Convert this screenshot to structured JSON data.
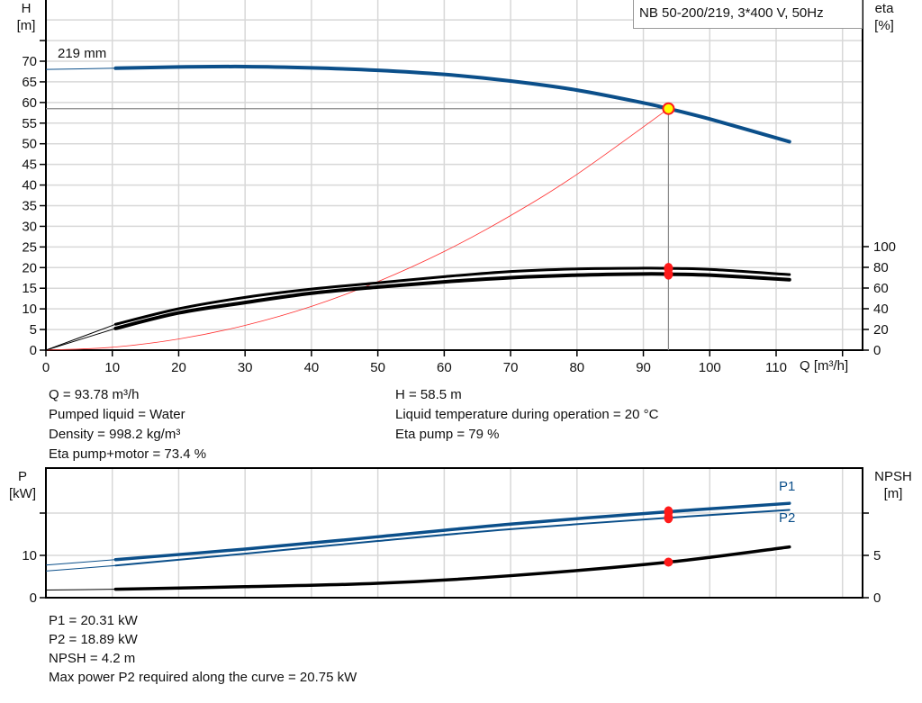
{
  "title": "NB 50-200/219, 3*400 V, 50Hz",
  "chart_data": [
    {
      "type": "line",
      "title": "NB 50-200/219, 3*400 V, 50Hz",
      "xlabel": "Q [m³/h]",
      "ylabel": "H\n[m]",
      "ylabel_unit": "[m]",
      "ylabel_name": "H",
      "y2label_name": "eta",
      "y2label_unit": "[%]",
      "xlim": [
        0,
        123
      ],
      "ylim": [
        0,
        85
      ],
      "y2lim": [
        0,
        100
      ],
      "xticks": [
        0,
        10,
        20,
        30,
        40,
        50,
        60,
        70,
        80,
        90,
        100,
        110
      ],
      "yticks": [
        0,
        5,
        10,
        15,
        20,
        25,
        30,
        35,
        40,
        45,
        50,
        55,
        60,
        65,
        70
      ],
      "y2ticks": [
        0,
        20,
        40,
        60,
        80,
        100
      ],
      "grid": true,
      "curve_label": "219 mm",
      "series": [
        {
          "id": "head",
          "axis": "left",
          "color": "#0b4f8a",
          "extrapolated_to": 10.5,
          "x": [
            0,
            10.5,
            20,
            30,
            40,
            50,
            60,
            70,
            80,
            90,
            93.78,
            100,
            112
          ],
          "y": [
            68.0,
            68.3,
            68.6,
            68.7,
            68.4,
            67.8,
            66.8,
            65.2,
            63.0,
            59.9,
            58.5,
            56.0,
            50.5
          ]
        },
        {
          "id": "eta_pump",
          "axis": "right",
          "color": "#000000",
          "extrapolated_to": 10.5,
          "x": [
            0,
            10.5,
            20,
            30,
            40,
            50,
            60,
            70,
            80,
            90,
            93.78,
            100,
            112
          ],
          "y": [
            0,
            25,
            40,
            51,
            59,
            65,
            71,
            76,
            78.5,
            79.2,
            79,
            78,
            73
          ]
        },
        {
          "id": "eta_pump_motor",
          "axis": "right",
          "color": "#000000",
          "extrapolated_to": 10.5,
          "x": [
            0,
            10.5,
            20,
            30,
            40,
            50,
            60,
            70,
            80,
            90,
            93.78,
            100,
            112
          ],
          "y": [
            0,
            21,
            36,
            46,
            55,
            61,
            66,
            70,
            72.5,
            73.6,
            73.4,
            72.5,
            68
          ]
        },
        {
          "id": "system_curve",
          "axis": "left",
          "color": "#ff3030",
          "x": [
            0,
            10,
            20,
            30,
            40,
            50,
            60,
            70,
            80,
            93.78
          ],
          "y": [
            0,
            0.7,
            2.7,
            6.0,
            10.6,
            16.6,
            23.9,
            32.6,
            42.6,
            58.5
          ]
        }
      ],
      "operating_point": {
        "q": 93.78,
        "h": 58.5,
        "eta_pump": 79,
        "eta_pump_motor": 73.4
      }
    },
    {
      "type": "line",
      "ylabel_name": "P",
      "ylabel_unit": "[kW]",
      "y2label_name": "NPSH",
      "y2label_unit": "[m]",
      "xlim": [
        0,
        123
      ],
      "ylim": [
        0,
        31
      ],
      "y2lim": [
        0,
        15.5
      ],
      "yticks": [
        0,
        10,
        20
      ],
      "ytick_labels": [
        "0",
        "10",
        ""
      ],
      "y2ticks": [
        0,
        5,
        10
      ],
      "y2tick_labels": [
        "0",
        "5",
        ""
      ],
      "grid": true,
      "series": [
        {
          "id": "p1",
          "name": "P1",
          "axis": "left",
          "color": "#0b4f8a",
          "extrapolated_to": 10.5,
          "x": [
            0,
            10.5,
            30,
            50,
            70,
            93.78,
            112
          ],
          "y": [
            7.7,
            9.0,
            11.5,
            14.4,
            17.4,
            20.31,
            22.3
          ]
        },
        {
          "id": "p2",
          "name": "P2",
          "axis": "left",
          "color": "#0b4f8a",
          "extrapolated_to": 10.5,
          "x": [
            0,
            10.5,
            30,
            50,
            70,
            93.78,
            112
          ],
          "y": [
            6.3,
            7.6,
            10.4,
            13.4,
            16.2,
            18.89,
            20.75
          ]
        },
        {
          "id": "npsh",
          "axis": "right",
          "color": "#000000",
          "extrapolated_to": 10.5,
          "x": [
            0,
            10.5,
            30,
            50,
            70,
            93.78,
            112
          ],
          "y": [
            0.9,
            1.0,
            1.3,
            1.7,
            2.6,
            4.2,
            6.0
          ]
        }
      ]
    }
  ],
  "info_top": {
    "q": "Q = 93.78 m³/h",
    "liquid": "Pumped liquid = Water",
    "density": "Density = 998.2 kg/m³",
    "eta_pm": "Eta pump+motor = 73.4 %",
    "h": "H = 58.5 m",
    "temp": "Liquid temperature during operation = 20 °C",
    "eta_p": "Eta pump = 79 %"
  },
  "info_bottom": {
    "p1": "P1 = 20.31 kW",
    "p2": "P2 = 18.89 kW",
    "npsh": "NPSH = 4.2 m",
    "maxp2": "Max power P2 required along the curve = 20.75 kW"
  }
}
